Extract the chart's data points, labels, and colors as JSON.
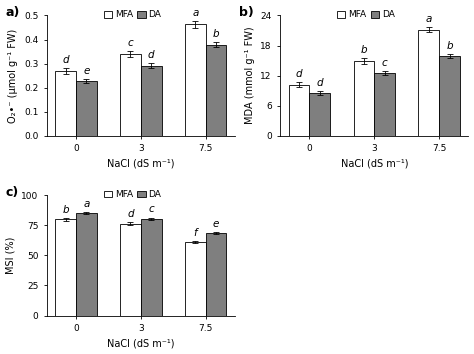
{
  "panel_a": {
    "title": "a)",
    "ylabel": "O₂•⁻ (μmol g⁻¹ FW)",
    "xlabel": "NaCl (dS m⁻¹)",
    "categories": [
      "0",
      "3",
      "7.5"
    ],
    "mfa_values": [
      0.27,
      0.34,
      0.463
    ],
    "da_values": [
      0.228,
      0.292,
      0.378
    ],
    "mfa_errors": [
      0.012,
      0.012,
      0.015
    ],
    "da_errors": [
      0.008,
      0.01,
      0.01
    ],
    "mfa_labels": [
      "d",
      "c",
      "a"
    ],
    "da_labels": [
      "e",
      "d",
      "b"
    ],
    "ylim": [
      0,
      0.5
    ],
    "yticks": [
      0.0,
      0.1,
      0.2,
      0.3,
      0.4,
      0.5
    ],
    "ytick_labels": [
      "0.0",
      "0.1",
      "0.2",
      "0.3",
      "0.4",
      "0.5"
    ]
  },
  "panel_b": {
    "title": "b)",
    "ylabel": "MDA (mmol g⁻¹ FW)",
    "xlabel": "NaCl (dS m⁻¹)",
    "categories": [
      "0",
      "3",
      "7.5"
    ],
    "mfa_values": [
      10.2,
      15.0,
      21.2
    ],
    "da_values": [
      8.5,
      12.5,
      16.0
    ],
    "mfa_errors": [
      0.5,
      0.6,
      0.5
    ],
    "da_errors": [
      0.4,
      0.4,
      0.4
    ],
    "mfa_labels": [
      "d",
      "b",
      "a"
    ],
    "da_labels": [
      "d",
      "c",
      "b"
    ],
    "ylim": [
      0,
      24
    ],
    "yticks": [
      0,
      6,
      12,
      18,
      24
    ],
    "ytick_labels": [
      "0",
      "6",
      "12",
      "18",
      "24"
    ]
  },
  "panel_c": {
    "title": "c)",
    "ylabel": "MSI (%)",
    "xlabel": "NaCl (dS m⁻¹)",
    "categories": [
      "0",
      "3",
      "7.5"
    ],
    "mfa_values": [
      80.0,
      76.5,
      61.0
    ],
    "da_values": [
      85.0,
      80.5,
      68.5
    ],
    "mfa_errors": [
      1.0,
      1.0,
      1.0
    ],
    "da_errors": [
      1.0,
      1.0,
      1.0
    ],
    "mfa_labels": [
      "b",
      "d",
      "f"
    ],
    "da_labels": [
      "a",
      "c",
      "e"
    ],
    "ylim": [
      0,
      100
    ],
    "yticks": [
      0,
      25,
      50,
      75,
      100
    ],
    "ytick_labels": [
      "0",
      "25",
      "50",
      "75",
      "100"
    ]
  },
  "mfa_color": "#ffffff",
  "da_color": "#7f7f7f",
  "edge_color": "#000000",
  "bar_width": 0.32,
  "legend_labels": [
    "MFA",
    "DA"
  ],
  "label_fontsize": 6.5,
  "tick_fontsize": 6.5,
  "axis_label_fontsize": 7,
  "sig_label_fontsize": 7.5
}
